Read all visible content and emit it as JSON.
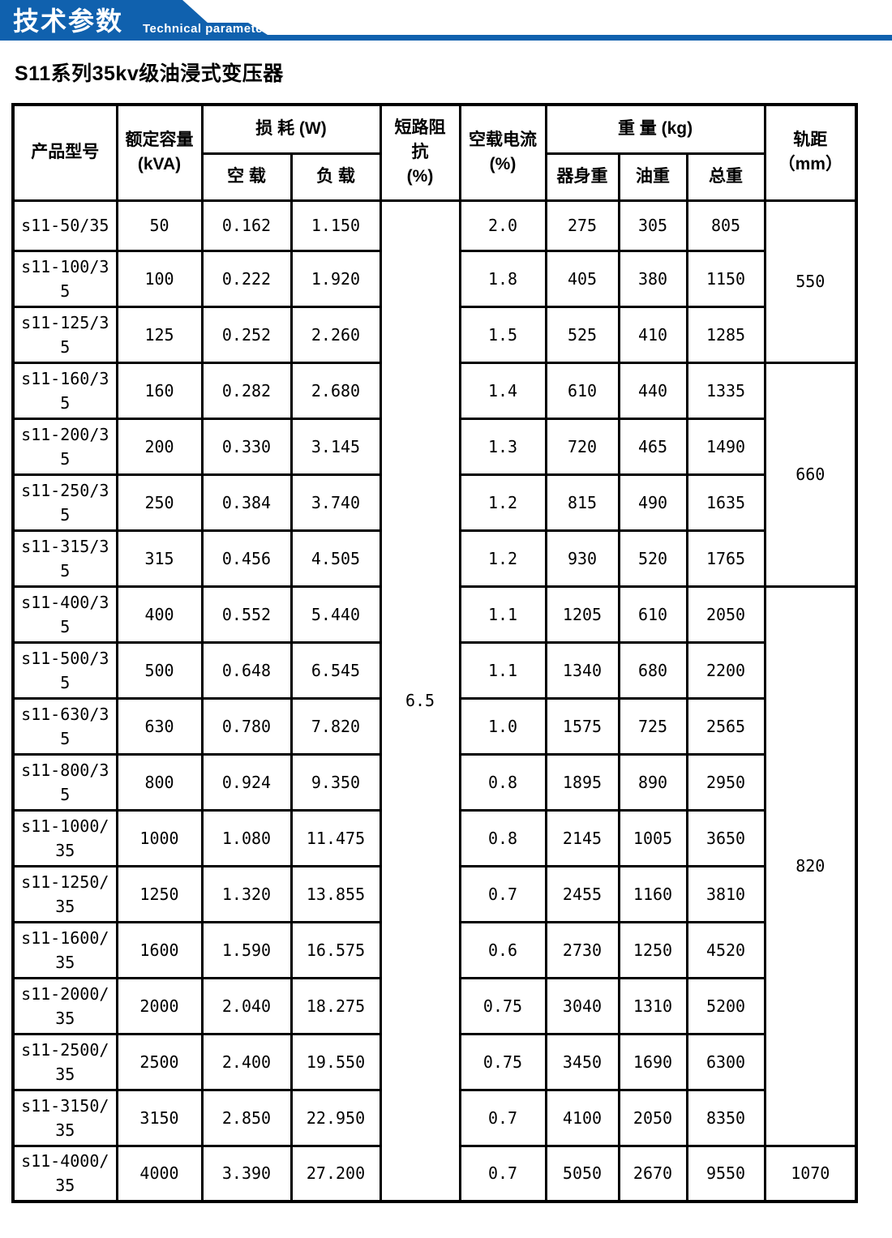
{
  "banner": {
    "title_cn": "技术参数",
    "title_en": "Technical parameter",
    "blue": "#1061ae"
  },
  "page_title": "S11系列35kv级油浸式变压器",
  "table": {
    "header": {
      "product_model": "产品型号",
      "rated_capacity": "额定容量\n(kVA)",
      "loss": "损 耗 (W)",
      "no_load": "空 载",
      "on_load": "负 载",
      "impedance": "短路阻\n抗\n(%)",
      "no_load_current": "空载电流\n(%)",
      "weight": "重 量 (kg)",
      "body_weight": "器身重",
      "oil_weight": "油重",
      "total_weight": "总重",
      "gauge": "轨距\n（mm）"
    },
    "impedance_value": "6.5",
    "gauge_groups": [
      {
        "value": "550",
        "rows": 3
      },
      {
        "value": "660",
        "rows": 4
      },
      {
        "value": "820",
        "rows": 10
      },
      {
        "value": "1070",
        "rows": 1
      }
    ],
    "columns": [
      "model",
      "capacity_kva",
      "loss_no_load",
      "loss_on_load",
      "no_load_current_pct",
      "body_weight_kg",
      "oil_weight_kg",
      "total_weight_kg"
    ],
    "rows": [
      [
        "s11-50/35",
        "50",
        "0.162",
        "1.150",
        "2.0",
        "275",
        "305",
        "805"
      ],
      [
        "s11-100/35",
        "100",
        "0.222",
        "1.920",
        "1.8",
        "405",
        "380",
        "1150"
      ],
      [
        "s11-125/35",
        "125",
        "0.252",
        "2.260",
        "1.5",
        "525",
        "410",
        "1285"
      ],
      [
        "s11-160/35",
        "160",
        "0.282",
        "2.680",
        "1.4",
        "610",
        "440",
        "1335"
      ],
      [
        "s11-200/35",
        "200",
        "0.330",
        "3.145",
        "1.3",
        "720",
        "465",
        "1490"
      ],
      [
        "s11-250/35",
        "250",
        "0.384",
        "3.740",
        "1.2",
        "815",
        "490",
        "1635"
      ],
      [
        "s11-315/35",
        "315",
        "0.456",
        "4.505",
        "1.2",
        "930",
        "520",
        "1765"
      ],
      [
        "s11-400/35",
        "400",
        "0.552",
        "5.440",
        "1.1",
        "1205",
        "610",
        "2050"
      ],
      [
        "s11-500/35",
        "500",
        "0.648",
        "6.545",
        "1.1",
        "1340",
        "680",
        "2200"
      ],
      [
        "s11-630/35",
        "630",
        "0.780",
        "7.820",
        "1.0",
        "1575",
        "725",
        "2565"
      ],
      [
        "s11-800/35",
        "800",
        "0.924",
        "9.350",
        "0.8",
        "1895",
        "890",
        "2950"
      ],
      [
        "s11-1000/35",
        "1000",
        "1.080",
        "11.475",
        "0.8",
        "2145",
        "1005",
        "3650"
      ],
      [
        "s11-1250/35",
        "1250",
        "1.320",
        "13.855",
        "0.7",
        "2455",
        "1160",
        "3810"
      ],
      [
        "s11-1600/35",
        "1600",
        "1.590",
        "16.575",
        "0.6",
        "2730",
        "1250",
        "4520"
      ],
      [
        "s11-2000/35",
        "2000",
        "2.040",
        "18.275",
        "0.75",
        "3040",
        "1310",
        "5200"
      ],
      [
        "s11-2500/35",
        "2500",
        "2.400",
        "19.550",
        "0.75",
        "3450",
        "1690",
        "6300"
      ],
      [
        "s11-3150/35",
        "3150",
        "2.850",
        "22.950",
        "0.7",
        "4100",
        "2050",
        "8350"
      ],
      [
        "s11-4000/35",
        "4000",
        "3.390",
        "27.200",
        "0.7",
        "5050",
        "2670",
        "9550"
      ]
    ]
  }
}
